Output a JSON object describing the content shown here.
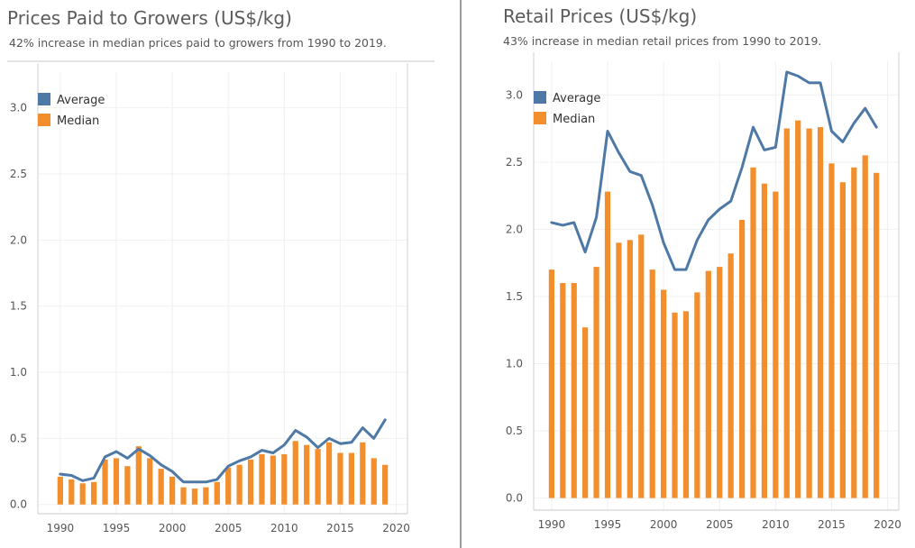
{
  "colors": {
    "average": "#4e79a7",
    "median": "#f28e2b"
  },
  "chart_data": [
    {
      "type": "bar",
      "title": "Prices Paid to Growers (US$/kg)",
      "subtitle": "42% increase in median prices paid to growers from 1990 to 2019.",
      "x": [
        1990,
        1991,
        1992,
        1993,
        1994,
        1995,
        1996,
        1997,
        1998,
        1999,
        2000,
        2001,
        2002,
        2003,
        2004,
        2005,
        2006,
        2007,
        2008,
        2009,
        2010,
        2011,
        2012,
        2013,
        2014,
        2015,
        2016,
        2017,
        2018,
        2019
      ],
      "xlim": [
        1988,
        2021
      ],
      "ylim": [
        -0.07,
        3.27
      ],
      "x_ticks": [
        {
          "v": 1990,
          "label": "1990"
        },
        {
          "v": 1995,
          "label": "1995"
        },
        {
          "v": 2000,
          "label": "2000"
        },
        {
          "v": 2005,
          "label": "2005"
        },
        {
          "v": 2010,
          "label": "2010"
        },
        {
          "v": 2015,
          "label": "2015"
        },
        {
          "v": 2020,
          "label": "2020"
        }
      ],
      "y_ticks": [
        {
          "v": 0,
          "label": "0.0"
        },
        {
          "v": 0.5,
          "label": "0.5"
        },
        {
          "v": 1.0,
          "label": "1.0"
        },
        {
          "v": 1.5,
          "label": "1.5"
        },
        {
          "v": 2.0,
          "label": "2.0"
        },
        {
          "v": 2.5,
          "label": "2.5"
        },
        {
          "v": 3.0,
          "label": "3.0"
        }
      ],
      "grid": true,
      "legend_position": "top-left",
      "series": [
        {
          "name": "Average",
          "kind": "line",
          "values": [
            0.23,
            0.22,
            0.18,
            0.2,
            0.36,
            0.4,
            0.35,
            0.42,
            0.37,
            0.3,
            0.25,
            0.17,
            0.17,
            0.17,
            0.19,
            0.29,
            0.33,
            0.36,
            0.41,
            0.39,
            0.45,
            0.56,
            0.51,
            0.43,
            0.5,
            0.46,
            0.47,
            0.58,
            0.5,
            0.64
          ]
        },
        {
          "name": "Median",
          "kind": "bar",
          "values": [
            0.21,
            0.19,
            0.16,
            0.17,
            0.34,
            0.35,
            0.29,
            0.44,
            0.35,
            0.27,
            0.21,
            0.13,
            0.12,
            0.13,
            0.17,
            0.28,
            0.3,
            0.34,
            0.38,
            0.37,
            0.38,
            0.48,
            0.45,
            0.42,
            0.47,
            0.39,
            0.39,
            0.47,
            0.35,
            0.3
          ]
        }
      ]
    },
    {
      "type": "bar",
      "title": "Retail Prices (US$/kg)",
      "subtitle": "43% increase in median retail prices from 1990 to 2019.",
      "x": [
        1990,
        1991,
        1992,
        1993,
        1994,
        1995,
        1996,
        1997,
        1998,
        1999,
        2000,
        2001,
        2002,
        2003,
        2004,
        2005,
        2006,
        2007,
        2008,
        2009,
        2010,
        2011,
        2012,
        2013,
        2014,
        2015,
        2016,
        2017,
        2018,
        2019
      ],
      "xlim": [
        1988.4,
        2021
      ],
      "ylim": [
        -0.09,
        3.25
      ],
      "x_ticks": [
        {
          "v": 1990,
          "label": "1990"
        },
        {
          "v": 1995,
          "label": "1995"
        },
        {
          "v": 2000,
          "label": "2000"
        },
        {
          "v": 2005,
          "label": "2005"
        },
        {
          "v": 2010,
          "label": "2010"
        },
        {
          "v": 2015,
          "label": "2015"
        },
        {
          "v": 2020,
          "label": "2020"
        }
      ],
      "y_ticks": [
        {
          "v": 0,
          "label": "0.0"
        },
        {
          "v": 0.5,
          "label": "0.5"
        },
        {
          "v": 1.0,
          "label": "1.0"
        },
        {
          "v": 1.5,
          "label": "1.5"
        },
        {
          "v": 2.0,
          "label": "2.0"
        },
        {
          "v": 2.5,
          "label": "2.5"
        },
        {
          "v": 3.0,
          "label": "3.0"
        }
      ],
      "grid": true,
      "legend_position": "top-left",
      "series": [
        {
          "name": "Average",
          "kind": "line",
          "values": [
            2.05,
            2.03,
            2.05,
            1.83,
            2.09,
            2.73,
            2.57,
            2.43,
            2.4,
            2.18,
            1.9,
            1.7,
            1.7,
            1.92,
            2.07,
            2.15,
            2.21,
            2.46,
            2.76,
            2.59,
            2.61,
            3.17,
            3.14,
            3.09,
            3.09,
            2.73,
            2.65,
            2.79,
            2.9,
            2.76
          ]
        },
        {
          "name": "Median",
          "kind": "bar",
          "values": [
            1.7,
            1.6,
            1.6,
            1.27,
            1.72,
            2.28,
            1.9,
            1.92,
            1.96,
            1.7,
            1.55,
            1.38,
            1.39,
            1.53,
            1.69,
            1.72,
            1.82,
            2.07,
            2.46,
            2.34,
            2.28,
            2.75,
            2.81,
            2.75,
            2.76,
            2.49,
            2.35,
            2.46,
            2.55,
            2.42
          ]
        }
      ]
    }
  ]
}
